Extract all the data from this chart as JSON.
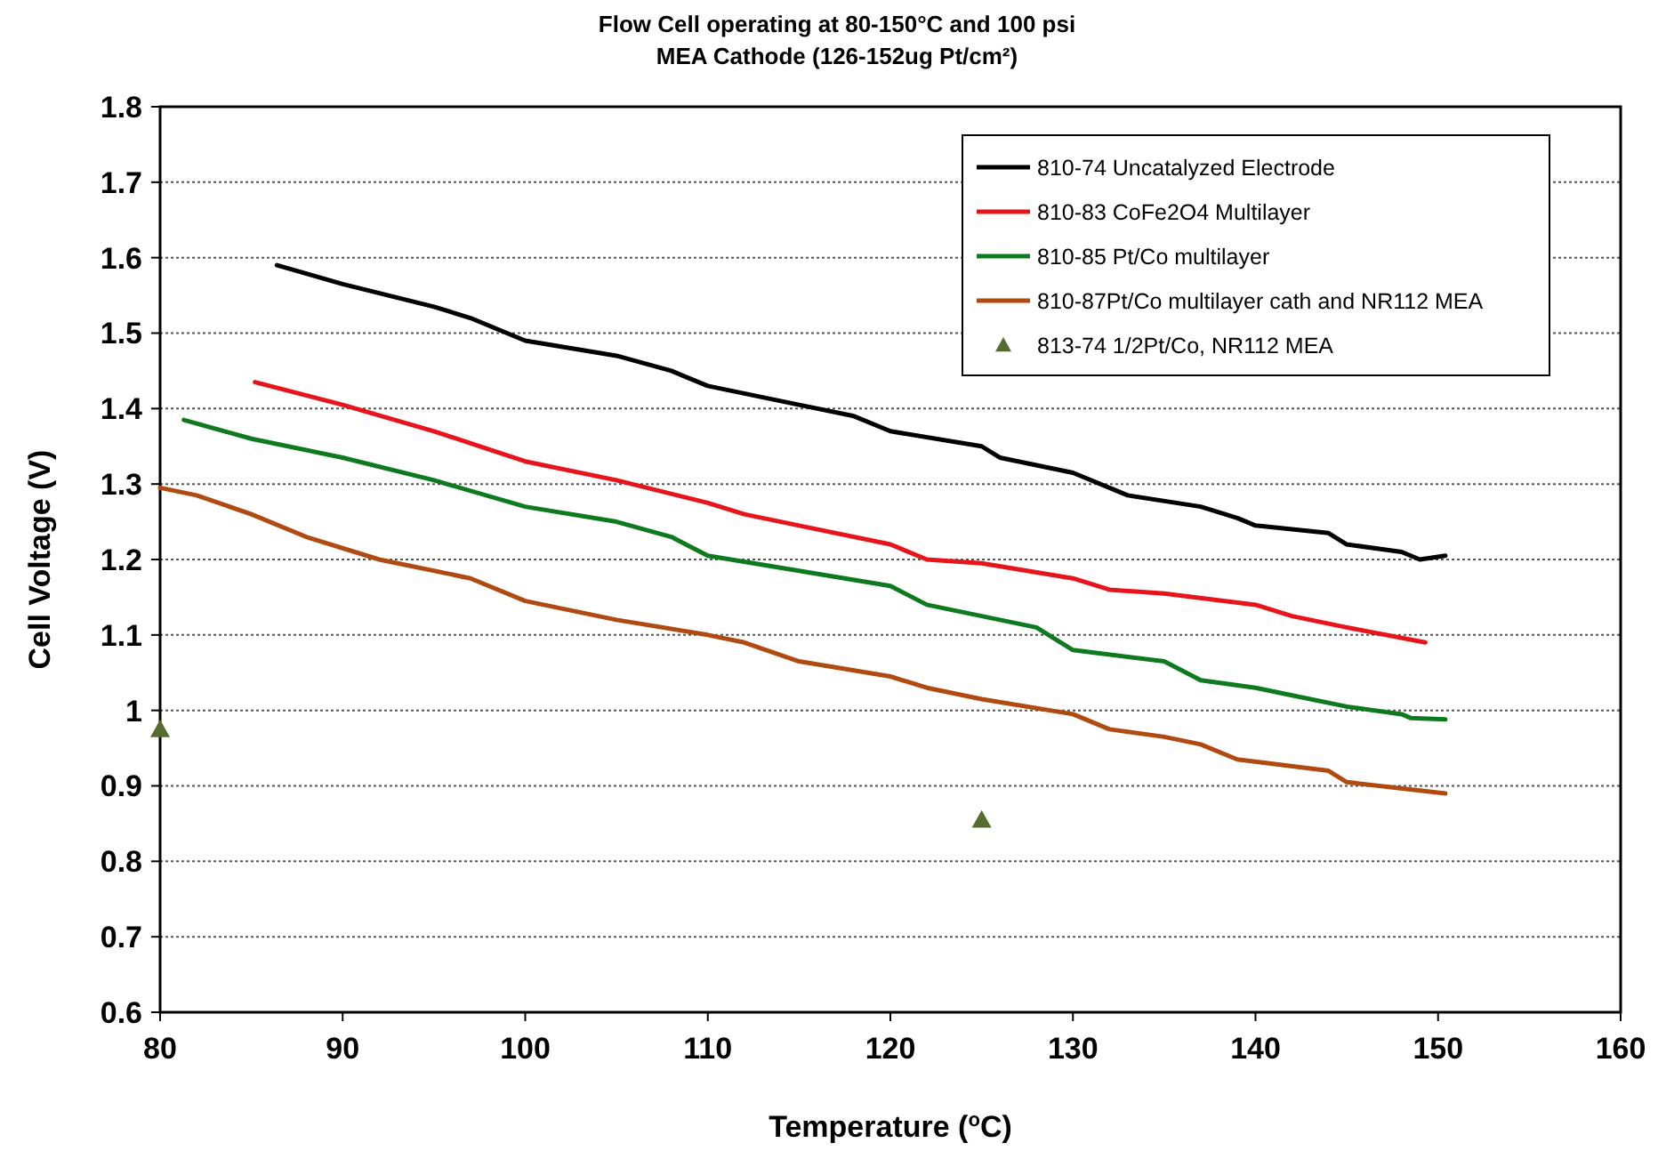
{
  "chart_data": {
    "type": "line",
    "title": "Flow Cell operating at 80-150°C and 100 psi",
    "subtitle": "MEA Cathode (126-152ug Pt/cm²)",
    "xlabel": "Temperature ($^{o}$C)",
    "ylabel": "Cell Voltage (V)",
    "xlim": [
      80,
      160
    ],
    "xticks": [
      80,
      90,
      100,
      110,
      120,
      130,
      140,
      150,
      160
    ],
    "ylim": [
      0.6,
      1.8
    ],
    "yticks": [
      0.6,
      0.7,
      0.8,
      0.9,
      1,
      1.1,
      1.2,
      1.3,
      1.4,
      1.5,
      1.6,
      1.7,
      1.8
    ],
    "grid": "y",
    "legend": "top right",
    "marker": "none",
    "line_style": "solid",
    "series": [
      {
        "name": "810-74 Uncatalyzed Electrode",
        "color": "#000000",
        "x": [
          86.4,
          90,
          95,
          97,
          100,
          105,
          108,
          110,
          115,
          118,
          120,
          125,
          126,
          130,
          133,
          137,
          139,
          140,
          144,
          145,
          148,
          149,
          150.4
        ],
        "values": [
          1.59,
          1.565,
          1.535,
          1.52,
          1.49,
          1.47,
          1.45,
          1.43,
          1.405,
          1.39,
          1.37,
          1.35,
          1.335,
          1.315,
          1.285,
          1.27,
          1.255,
          1.245,
          1.235,
          1.22,
          1.21,
          1.2,
          1.205
        ]
      },
      {
        "name": "810-83 CoFe2O4 Multilayer",
        "color": "#e8141c",
        "x": [
          85.2,
          90,
          95,
          100,
          105,
          110,
          112,
          115,
          120,
          122,
          125,
          130,
          132,
          135,
          140,
          142,
          145,
          149.3
        ],
        "values": [
          1.435,
          1.405,
          1.37,
          1.33,
          1.305,
          1.275,
          1.26,
          1.245,
          1.22,
          1.2,
          1.195,
          1.175,
          1.16,
          1.155,
          1.14,
          1.125,
          1.11,
          1.09
        ]
      },
      {
        "name": "810-85 Pt/Co multilayer",
        "color": "#0e7a1e",
        "x": [
          81.3,
          85,
          90,
          95,
          100,
          105,
          108,
          110,
          115,
          120,
          122,
          125,
          128,
          130,
          135,
          137,
          140,
          142,
          145,
          148,
          148.5,
          150.4
        ],
        "values": [
          1.385,
          1.36,
          1.335,
          1.305,
          1.27,
          1.25,
          1.23,
          1.205,
          1.185,
          1.165,
          1.14,
          1.125,
          1.11,
          1.08,
          1.065,
          1.04,
          1.03,
          1.02,
          1.005,
          0.995,
          0.99,
          0.988
        ]
      },
      {
        "name": "810-87Pt/Co multilayer cath and NR112 MEA",
        "color": "#b04a10",
        "x": [
          80,
          82,
          85,
          88,
          92,
          97,
          100,
          105,
          110,
          112,
          115,
          120,
          122,
          125,
          130,
          132,
          135,
          137,
          139,
          144,
          145,
          150.4
        ],
        "values": [
          1.295,
          1.285,
          1.26,
          1.23,
          1.2,
          1.175,
          1.145,
          1.12,
          1.1,
          1.09,
          1.065,
          1.045,
          1.03,
          1.015,
          0.995,
          0.975,
          0.965,
          0.955,
          0.935,
          0.92,
          0.905,
          0.89
        ]
      },
      {
        "name": "813-74 1/2Pt/Co, NR112 MEA",
        "type": "scatter",
        "marker": "triangle",
        "color": "#556b2f",
        "x": [
          80,
          125
        ],
        "values": [
          0.975,
          0.855
        ]
      }
    ]
  }
}
